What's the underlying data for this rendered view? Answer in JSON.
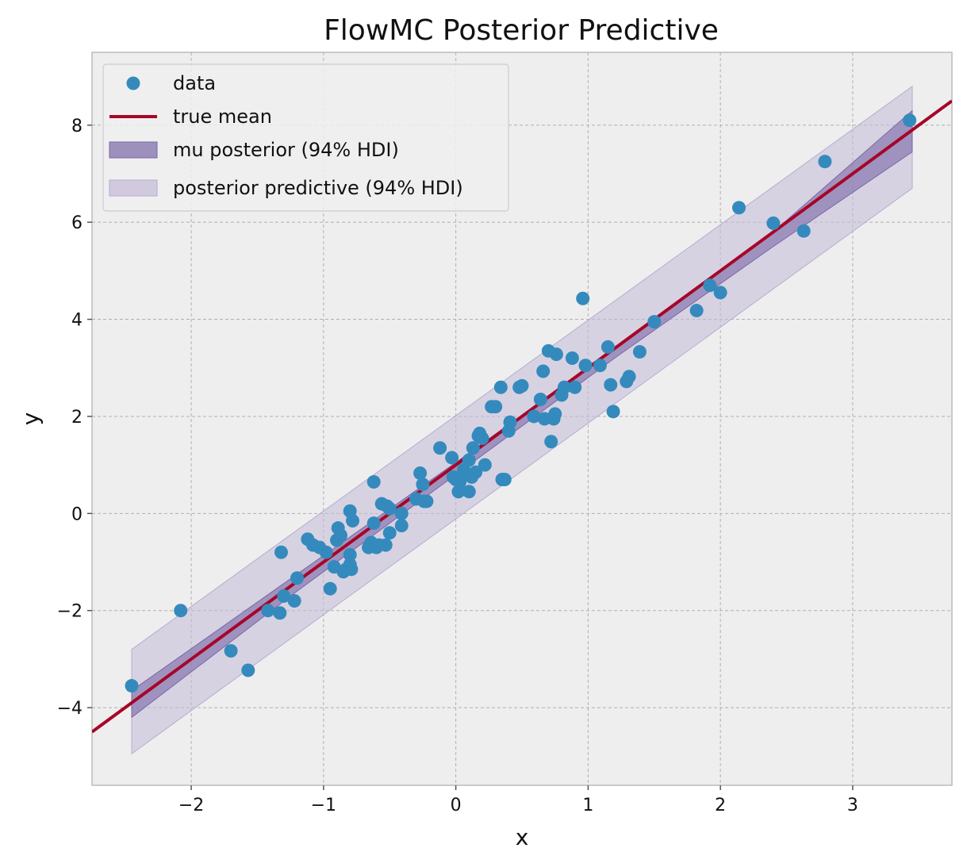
{
  "chart_data": {
    "type": "scatter",
    "title": "FlowMC Posterior Predictive",
    "xlabel": "x",
    "ylabel": "y",
    "xlim": [
      -2.75,
      3.75
    ],
    "ylim": [
      -5.6,
      9.5
    ],
    "xticks": [
      -2,
      -1,
      0,
      1,
      2,
      3
    ],
    "xtick_labels": [
      "−2",
      "−1",
      "0",
      "1",
      "2",
      "3"
    ],
    "yticks": [
      -4,
      -2,
      0,
      2,
      4,
      6,
      8
    ],
    "ytick_labels": [
      "−4",
      "−2",
      "0",
      "2",
      "4",
      "6",
      "8"
    ],
    "grid": true,
    "legend_position": "top-left",
    "colors": {
      "background": "#eeeeee",
      "data": "#348abd",
      "true_mean": "#a60628",
      "mu_band": "#7a68a6",
      "pp_band": "#c4bbd8"
    },
    "legend": [
      {
        "key": "data",
        "label": "data",
        "kind": "marker"
      },
      {
        "key": "true_mean",
        "label": "true mean",
        "kind": "line"
      },
      {
        "key": "mu",
        "label": "mu posterior (94% HDI)",
        "kind": "patch-dark"
      },
      {
        "key": "pp",
        "label": "posterior predictive (94% HDI)",
        "kind": "patch-light"
      }
    ],
    "true_mean": {
      "x": [
        -2.75,
        3.75
      ],
      "y": [
        -4.5,
        8.5
      ]
    },
    "mu_posterior_hdi": {
      "x": [
        -2.45,
        -1.2,
        0.0,
        1.2,
        2.4,
        3.45
      ],
      "lower": [
        -4.2,
        -1.6,
        0.8,
        3.2,
        5.5,
        7.45
      ],
      "upper": [
        -3.65,
        -1.25,
        1.05,
        3.4,
        5.8,
        8.3
      ]
    },
    "posterior_predictive_hdi": {
      "x": [
        -2.45,
        3.45
      ],
      "lower": [
        -4.95,
        6.7
      ],
      "upper": [
        -2.8,
        8.8
      ]
    },
    "points": {
      "x": [
        -2.45,
        -2.08,
        -1.7,
        -1.57,
        -1.42,
        -1.33,
        -1.32,
        -1.3,
        -1.22,
        -1.2,
        -1.12,
        -1.08,
        -1.03,
        -0.98,
        -0.95,
        -0.92,
        -0.9,
        -0.89,
        -0.87,
        -0.85,
        -0.83,
        -0.8,
        -0.8,
        -0.79,
        -0.8,
        -0.78,
        -0.66,
        -0.64,
        -0.62,
        -0.62,
        -0.6,
        -0.58,
        -0.56,
        -0.53,
        -0.52,
        -0.5,
        -0.5,
        -0.41,
        -0.41,
        -0.3,
        -0.27,
        -0.25,
        -0.24,
        -0.22,
        -0.12,
        -0.03,
        -0.02,
        0.0,
        0.02,
        0.03,
        0.04,
        0.06,
        0.1,
        0.1,
        0.12,
        0.13,
        0.15,
        0.17,
        0.18,
        0.2,
        0.22,
        0.27,
        0.3,
        0.34,
        0.35,
        0.37,
        0.4,
        0.41,
        0.48,
        0.5,
        0.59,
        0.64,
        0.66,
        0.67,
        0.7,
        0.72,
        0.74,
        0.75,
        0.76,
        0.8,
        0.82,
        0.88,
        0.9,
        0.96,
        0.98,
        1.09,
        1.15,
        1.17,
        1.19,
        1.29,
        1.31,
        1.39,
        1.5,
        1.82,
        1.92,
        2.0,
        2.14,
        2.4,
        2.63,
        2.79,
        3.43
      ],
      "y": [
        -3.55,
        -2.0,
        -2.83,
        -3.23,
        -2.0,
        -2.05,
        -0.8,
        -1.7,
        -1.8,
        -1.33,
        -0.53,
        -0.65,
        -0.7,
        -0.8,
        -1.55,
        -1.1,
        -0.55,
        -0.3,
        -0.45,
        -1.2,
        -1.15,
        -1.05,
        0.05,
        -1.15,
        -0.85,
        -0.15,
        -0.7,
        -0.6,
        -0.2,
        0.65,
        -0.7,
        -0.65,
        0.2,
        -0.65,
        0.15,
        -0.4,
        0.1,
        0.0,
        -0.25,
        0.3,
        0.83,
        0.6,
        0.25,
        0.25,
        1.35,
        1.15,
        0.75,
        0.7,
        0.45,
        0.65,
        0.75,
        0.9,
        1.1,
        0.45,
        0.75,
        1.35,
        0.85,
        1.6,
        1.65,
        1.55,
        1.0,
        2.2,
        2.2,
        2.6,
        0.7,
        0.7,
        1.7,
        1.88,
        2.6,
        2.63,
        2.0,
        2.35,
        2.93,
        1.95,
        3.35,
        1.48,
        1.95,
        2.05,
        3.28,
        2.44,
        2.6,
        3.2,
        2.6,
        4.43,
        3.05,
        3.05,
        3.43,
        2.65,
        2.1,
        2.72,
        2.82,
        3.33,
        3.95,
        4.18,
        4.7,
        4.55,
        6.3,
        5.98,
        5.82,
        7.25,
        8.1
      ]
    }
  }
}
